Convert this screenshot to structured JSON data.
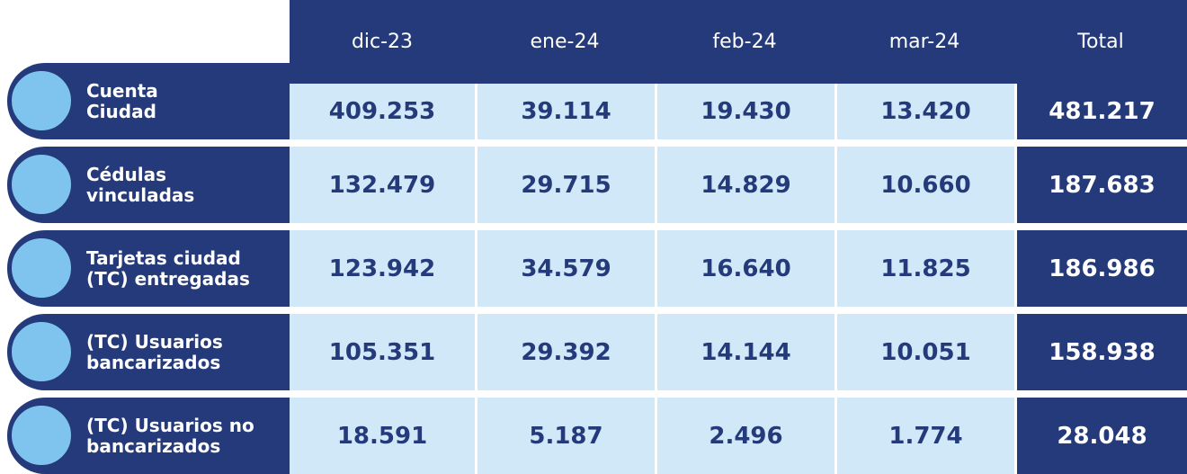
{
  "table": {
    "header": [
      "dic-23",
      "ene-24",
      "feb-24",
      "mar-24",
      "Total"
    ],
    "rows": [
      {
        "label": [
          "Cuenta",
          "Ciudad"
        ],
        "cells": [
          "409.253",
          "39.114",
          "19.430",
          "13.420",
          "481.217"
        ]
      },
      {
        "label": [
          "Cédulas",
          "vinculadas"
        ],
        "cells": [
          "132.479",
          "29.715",
          "14.829",
          "10.660",
          "187.683"
        ]
      },
      {
        "label": [
          "Tarjetas ciudad",
          "(TC) entregadas"
        ],
        "cells": [
          "123.942",
          "34.579",
          "16.640",
          "11.825",
          "186.986"
        ]
      },
      {
        "label": [
          "(TC) Usuarios",
          "bancarizados"
        ],
        "cells": [
          "105.351",
          "29.392",
          "14.144",
          "10.051",
          "158.938"
        ]
      },
      {
        "label": [
          "(TC) Usuarios no",
          "bancarizados"
        ],
        "cells": [
          "18.591",
          "5.187",
          "2.496",
          "1.774",
          "28.048"
        ]
      }
    ]
  }
}
